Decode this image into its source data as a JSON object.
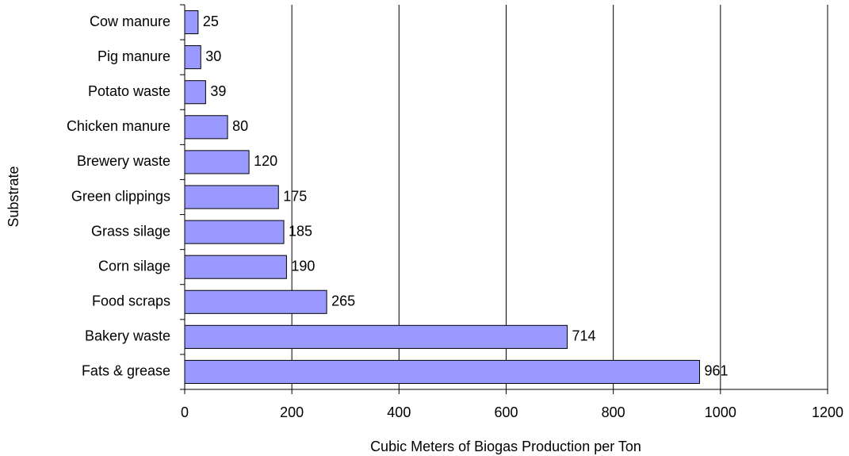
{
  "chart_data": {
    "type": "bar",
    "orientation": "horizontal",
    "x_label": "Cubic Meters of Biogas Production per Ton",
    "y_label": "Substrate",
    "categories": [
      "Cow manure",
      "Pig manure",
      "Potato waste",
      "Chicken manure",
      "Brewery waste",
      "Green clippings",
      "Grass silage",
      "Corn silage",
      "Food scraps",
      "Bakery waste",
      "Fats & grease"
    ],
    "values": [
      25,
      30,
      39,
      80,
      120,
      175,
      185,
      190,
      265,
      714,
      961
    ],
    "color": "#9999ff",
    "xlim": [
      0,
      1200
    ],
    "xticks": [
      0,
      200,
      400,
      600,
      800,
      1000,
      1200
    ],
    "grid": true
  }
}
